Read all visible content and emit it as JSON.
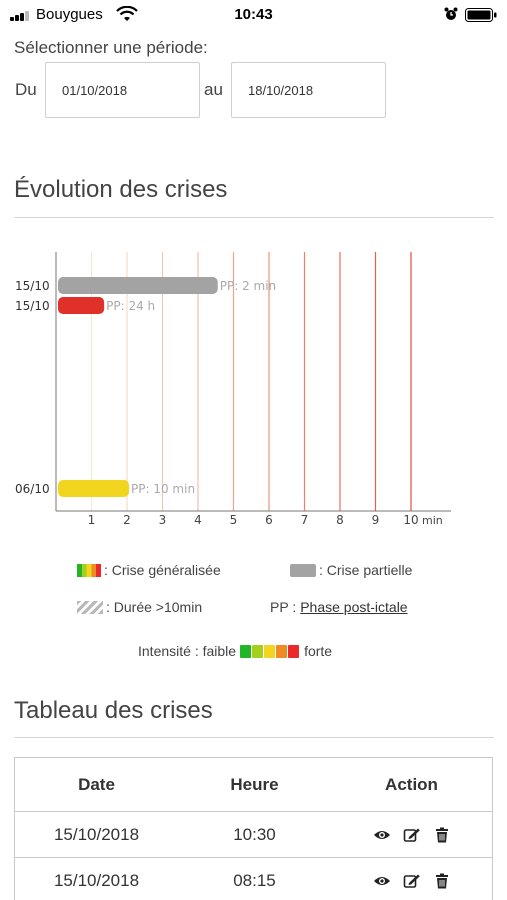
{
  "status_bar": {
    "carrier": "Bouygues",
    "time": "10:43"
  },
  "period": {
    "label": "Sélectionner une période",
    "from_label": "Du",
    "to_label": "au",
    "from_value": "01/10/2018",
    "to_value": "18/10/2018"
  },
  "evolution": {
    "title": "Évolution des crises"
  },
  "chart_data": {
    "type": "bar",
    "orientation": "horizontal",
    "x_unit_label": "min",
    "xticks": [
      1,
      2,
      3,
      4,
      5,
      6,
      7,
      8,
      9,
      10
    ],
    "xlim": [
      0,
      11
    ],
    "bars": [
      {
        "date": "15/10",
        "duration_min": 4.5,
        "color": "#a3a3a3",
        "kind": "partial",
        "pp_label": "PP: 2 min"
      },
      {
        "date": "15/10",
        "duration_min": 1.3,
        "color": "#e0302a",
        "kind": "generalized",
        "pp_label": "PP: 24 h"
      },
      {
        "date": "06/10",
        "duration_min": 2.0,
        "color": "#f2d51e",
        "kind": "generalized",
        "pp_label": "PP: 10 min"
      }
    ]
  },
  "legend": {
    "generalized": ": Crise généralisée",
    "partial": ": Crise partielle",
    "long": ": Durée >10min",
    "pp_prefix": "PP :",
    "pp_link": "Phase post-ictale",
    "intensity_label": "Intensité : faible",
    "intensity_high": "forte",
    "intensity_colors": [
      "#22b527",
      "#a4cf1d",
      "#f2d520",
      "#f08a23",
      "#e82a2a"
    ]
  },
  "table": {
    "title": "Tableau des crises",
    "headers": {
      "date": "Date",
      "hour": "Heure",
      "action": "Action"
    },
    "rows": [
      {
        "date": "15/10/2018",
        "hour": "10:30"
      },
      {
        "date": "15/10/2018",
        "hour": "08:15"
      }
    ]
  }
}
